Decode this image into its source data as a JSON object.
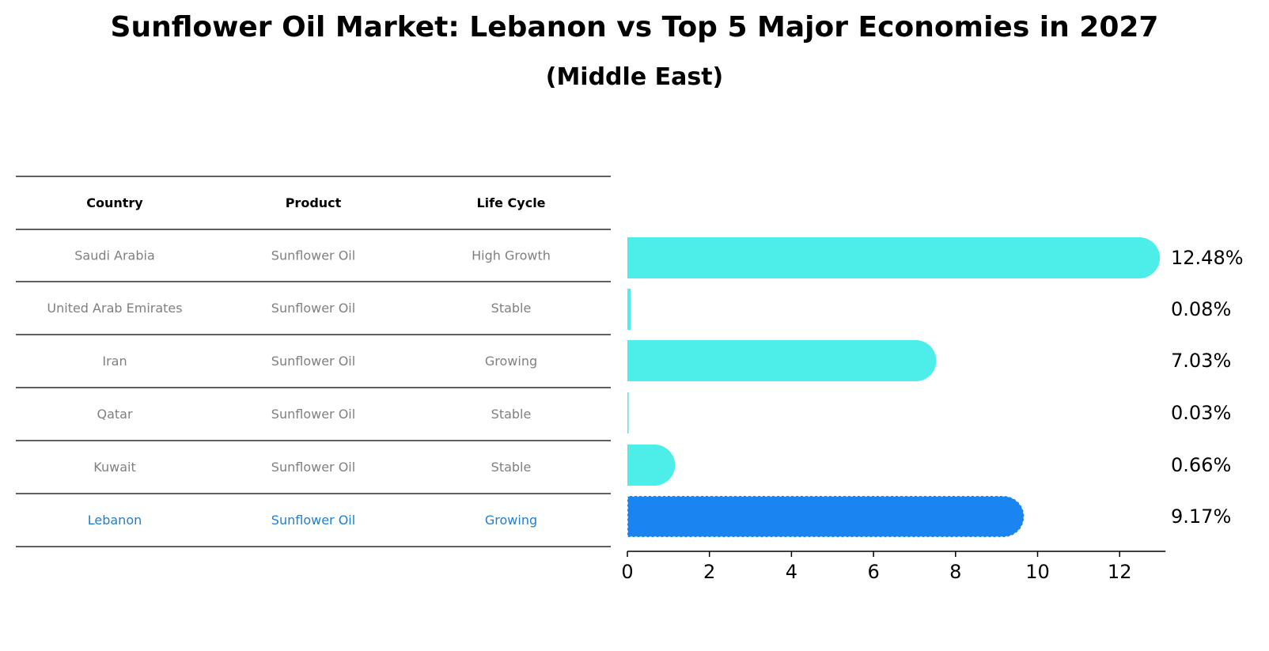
{
  "title": "Sunflower Oil Market: Lebanon vs Top 5 Major Economies in 2027",
  "subtitle": "(Middle East)",
  "colors": {
    "bar_default": "#4dedea",
    "bar_highlight": "#1a85f0",
    "text_muted": "#808080",
    "text_highlight": "#1f7fd1",
    "text_header": "#000000"
  },
  "table": {
    "headers": [
      "Country",
      "Product",
      "Life Cycle"
    ],
    "rows": [
      {
        "country": "Saudi Arabia",
        "product": "Sunflower Oil",
        "life_cycle": "High Growth",
        "highlight": false
      },
      {
        "country": "United Arab Emirates",
        "product": "Sunflower Oil",
        "life_cycle": "Stable",
        "highlight": false
      },
      {
        "country": "Iran",
        "product": "Sunflower Oil",
        "life_cycle": "Growing",
        "highlight": false
      },
      {
        "country": "Qatar",
        "product": "Sunflower Oil",
        "life_cycle": "Stable",
        "highlight": false
      },
      {
        "country": "Kuwait",
        "product": "Sunflower Oil",
        "life_cycle": "Stable",
        "highlight": false
      },
      {
        "country": "Lebanon",
        "product": "Sunflower Oil",
        "life_cycle": "Growing",
        "highlight": true
      }
    ]
  },
  "chart_data": {
    "type": "bar",
    "orientation": "horizontal",
    "title": "Sunflower Oil Market: Lebanon vs Top 5 Major Economies in 2027",
    "subtitle": "(Middle East)",
    "categories": [
      "Saudi Arabia",
      "United Arab Emirates",
      "Iran",
      "Qatar",
      "Kuwait",
      "Lebanon"
    ],
    "values": [
      12.48,
      0.08,
      7.03,
      0.03,
      0.66,
      9.17
    ],
    "value_labels": [
      "12.48%",
      "0.08%",
      "7.03%",
      "0.03%",
      "0.66%",
      "9.17%"
    ],
    "highlight_index": 5,
    "xlim": [
      0,
      13.1
    ],
    "xticks": [
      0,
      2,
      4,
      6,
      8,
      10,
      12
    ],
    "xtick_labels": [
      "0",
      "2",
      "4",
      "6",
      "8",
      "10",
      "12"
    ],
    "xlabel": "",
    "ylabel": "",
    "grid": false,
    "legend": "none"
  }
}
